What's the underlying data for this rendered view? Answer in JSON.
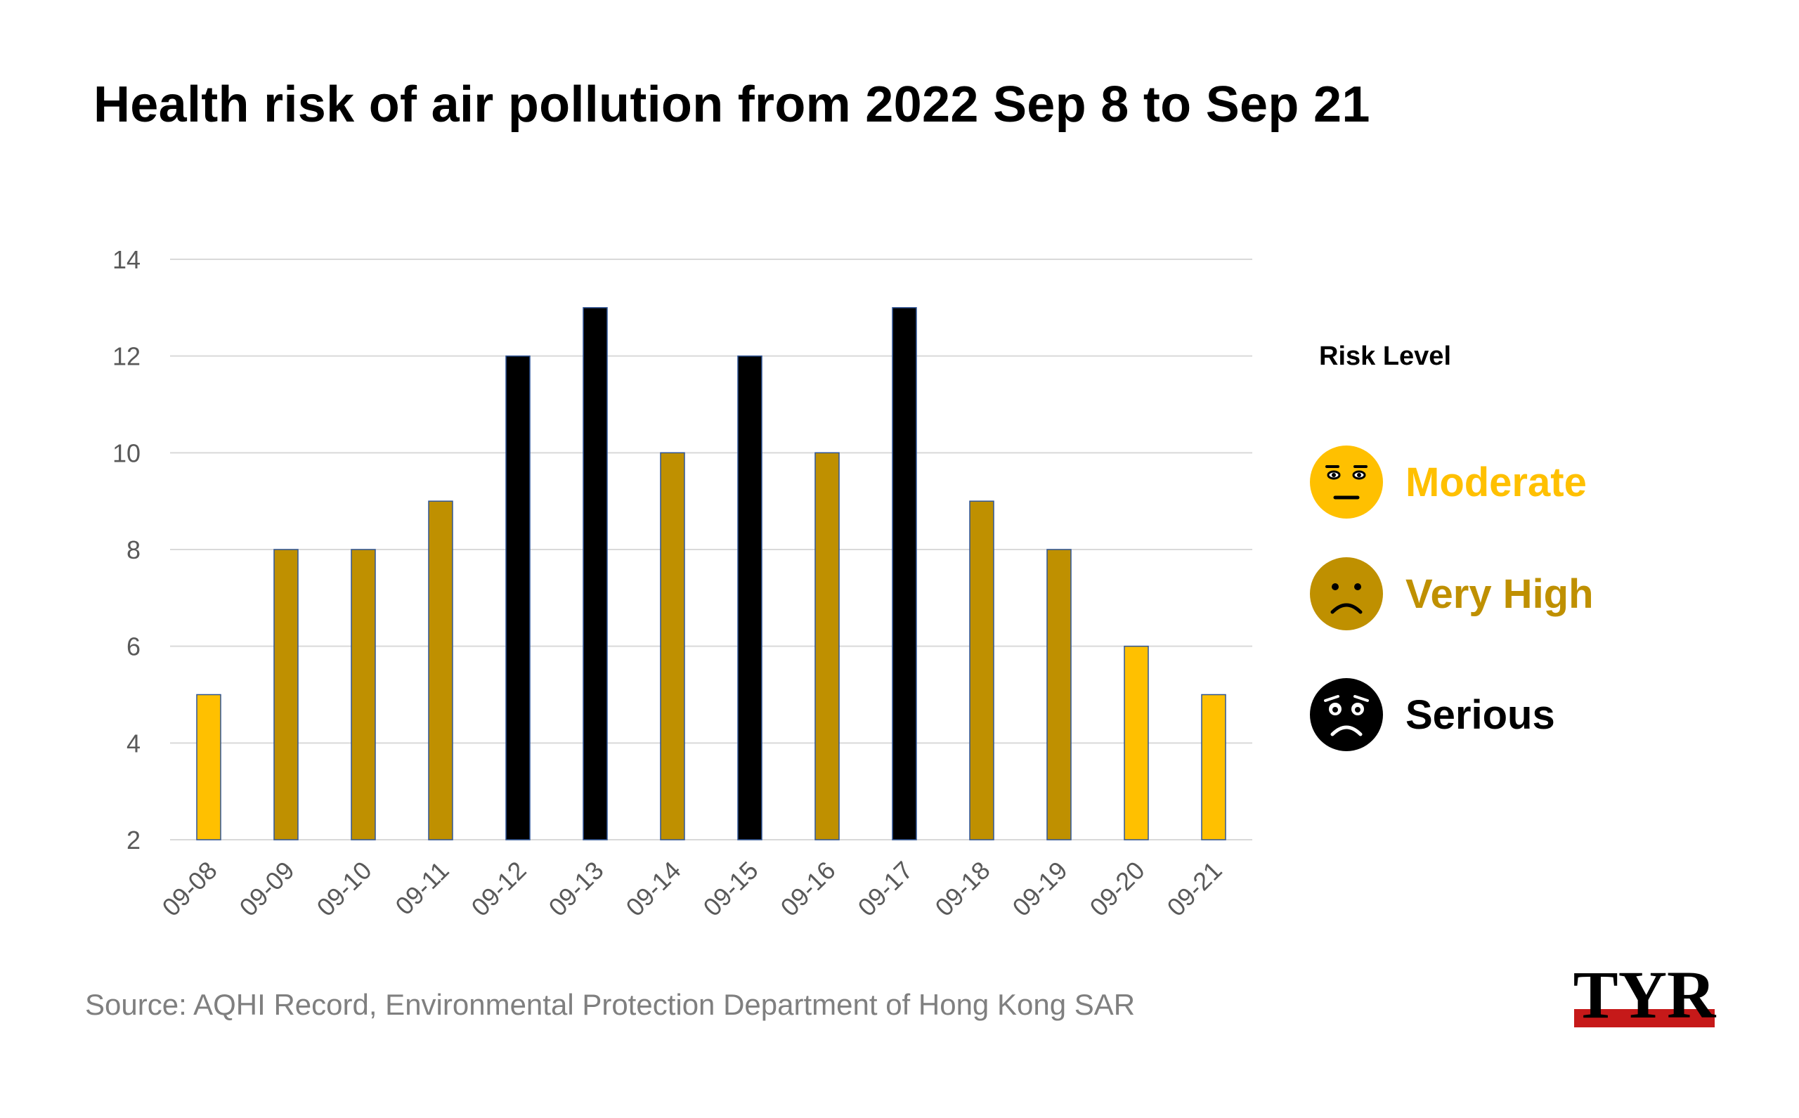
{
  "title": "Health risk of air pollution from 2022 Sep 8 to Sep 21",
  "legend": {
    "title": "Risk Level",
    "items": [
      {
        "label": "Moderate",
        "color": "#FFC000",
        "icon": "neutral-face-icon"
      },
      {
        "label": "Very High",
        "color": "#BF9000",
        "icon": "frowning-face-icon"
      },
      {
        "label": "Serious",
        "color": "#000000",
        "icon": "anxious-face-icon"
      }
    ]
  },
  "source": "Source: AQHI Record, Environmental Protection Department of Hong Kong SAR",
  "logo": {
    "text": "TYR",
    "icon": "tyr-logo"
  },
  "chart_data": {
    "type": "bar",
    "categories": [
      "09-08",
      "09-09",
      "09-10",
      "09-11",
      "09-12",
      "09-13",
      "09-14",
      "09-15",
      "09-16",
      "09-17",
      "09-18",
      "09-19",
      "09-20",
      "09-21"
    ],
    "values": [
      5,
      8,
      8,
      9,
      12,
      13,
      10,
      12,
      10,
      13,
      9,
      8,
      6,
      5
    ],
    "risk_levels": [
      "Moderate",
      "Very High",
      "Very High",
      "Very High",
      "Serious",
      "Serious",
      "Very High",
      "Serious",
      "Very High",
      "Serious",
      "Very High",
      "Very High",
      "Moderate",
      "Moderate"
    ],
    "colors": {
      "Moderate": "#FFC000",
      "Very High": "#BF9000",
      "Serious": "#000000"
    },
    "ylim": [
      2,
      14
    ],
    "yticks": [
      2,
      4,
      6,
      8,
      10,
      12,
      14
    ],
    "grid": true,
    "legend_position": "right"
  }
}
